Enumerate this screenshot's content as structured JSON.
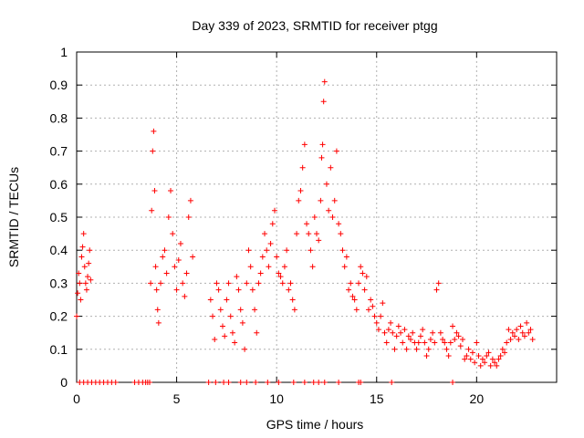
{
  "chart_data": {
    "type": "scatter",
    "title": "Day 339 of 2023, SRMTID for receiver ptgg",
    "xlabel": "GPS time / hours",
    "ylabel": "SRMTID / TECUs",
    "xlim": [
      0,
      24
    ],
    "ylim": [
      0,
      1
    ],
    "xticks": [
      0,
      5,
      10,
      15,
      20
    ],
    "xtick_labels": [
      "0",
      "5",
      "10",
      "15",
      "20"
    ],
    "yticks": [
      0,
      0.1,
      0.2,
      0.3,
      0.4,
      0.5,
      0.6,
      0.7,
      0.8,
      0.9,
      1
    ],
    "ytick_labels": [
      "0",
      "0.1",
      "0.2",
      "0.3",
      "0.4",
      "0.5",
      "0.6",
      "0.7",
      "0.8",
      "0.9",
      "1"
    ],
    "grid": true,
    "marker": "+",
    "series": [
      {
        "name": "SRMTID",
        "color": "#ff0000",
        "x": [
          0.0,
          0.05,
          0.1,
          0.15,
          0.2,
          0.25,
          0.3,
          0.35,
          0.4,
          0.45,
          0.5,
          0.55,
          0.6,
          0.65,
          0.7,
          3.7,
          3.75,
          3.8,
          3.85,
          3.9,
          3.95,
          4.0,
          4.05,
          4.1,
          4.2,
          4.3,
          4.4,
          4.5,
          4.6,
          4.7,
          4.8,
          4.9,
          5.0,
          5.1,
          5.2,
          5.3,
          5.4,
          5.5,
          5.6,
          5.7,
          5.8,
          6.7,
          6.8,
          6.9,
          7.0,
          7.1,
          7.2,
          7.3,
          7.4,
          7.5,
          7.6,
          7.7,
          7.8,
          7.9,
          8.0,
          8.1,
          8.2,
          8.3,
          8.4,
          8.5,
          8.6,
          8.7,
          8.8,
          8.9,
          9.0,
          9.1,
          9.2,
          9.3,
          9.4,
          9.5,
          9.6,
          9.7,
          9.8,
          9.9,
          10.0,
          10.1,
          10.2,
          10.3,
          10.4,
          10.5,
          10.6,
          10.7,
          10.8,
          10.9,
          11.0,
          11.1,
          11.2,
          11.3,
          11.4,
          11.5,
          11.6,
          11.7,
          11.8,
          11.9,
          12.0,
          12.1,
          12.2,
          12.25,
          12.3,
          12.35,
          12.4,
          12.5,
          12.6,
          12.7,
          12.8,
          12.9,
          13.0,
          13.1,
          13.2,
          13.3,
          13.4,
          13.5,
          13.6,
          13.7,
          13.8,
          13.9,
          14.0,
          14.1,
          14.2,
          14.3,
          14.4,
          14.5,
          14.6,
          14.7,
          14.8,
          14.9,
          15.0,
          15.1,
          15.2,
          15.3,
          15.4,
          15.5,
          15.6,
          15.7,
          15.8,
          15.9,
          16.0,
          16.1,
          16.2,
          16.3,
          16.4,
          16.5,
          16.6,
          16.7,
          16.8,
          16.9,
          17.0,
          17.1,
          17.2,
          17.3,
          17.4,
          17.5,
          17.6,
          17.7,
          17.8,
          17.9,
          18.0,
          18.1,
          18.2,
          18.3,
          18.4,
          18.5,
          18.6,
          18.7,
          18.8,
          18.9,
          19.0,
          19.1,
          19.2,
          19.3,
          19.4,
          19.5,
          19.6,
          19.7,
          19.8,
          19.9,
          20.0,
          20.1,
          20.2,
          20.3,
          20.4,
          20.5,
          20.6,
          20.7,
          20.8,
          20.9,
          21.0,
          21.1,
          21.2,
          21.3,
          21.4,
          21.5,
          21.6,
          21.7,
          21.8,
          21.9,
          22.0,
          22.1,
          22.2,
          22.3,
          22.4,
          22.5,
          22.6,
          22.7,
          22.8,
          0.15,
          0.35,
          0.55,
          0.75,
          0.95,
          1.15,
          1.35,
          1.55,
          1.75,
          1.95,
          2.9,
          3.1,
          3.3,
          3.45,
          3.55,
          3.65,
          6.6,
          6.95,
          7.35,
          7.6,
          8.2,
          8.5,
          8.95,
          9.55,
          10.1,
          10.85,
          11.4,
          11.85,
          12.1,
          12.4,
          13.1,
          14.1,
          14.2,
          15.75,
          18.8
        ],
        "y": [
          0.2,
          0.27,
          0.33,
          0.3,
          0.25,
          0.38,
          0.41,
          0.45,
          0.35,
          0.3,
          0.28,
          0.32,
          0.36,
          0.4,
          0.31,
          0.3,
          0.52,
          0.7,
          0.76,
          0.58,
          0.35,
          0.28,
          0.22,
          0.18,
          0.3,
          0.38,
          0.4,
          0.33,
          0.5,
          0.58,
          0.45,
          0.35,
          0.28,
          0.37,
          0.42,
          0.3,
          0.26,
          0.33,
          0.5,
          0.55,
          0.38,
          0.25,
          0.2,
          0.13,
          0.3,
          0.28,
          0.22,
          0.17,
          0.14,
          0.25,
          0.3,
          0.2,
          0.15,
          0.12,
          0.32,
          0.28,
          0.22,
          0.18,
          0.1,
          0.3,
          0.4,
          0.35,
          0.28,
          0.22,
          0.15,
          0.3,
          0.33,
          0.38,
          0.45,
          0.4,
          0.35,
          0.42,
          0.48,
          0.52,
          0.38,
          0.33,
          0.32,
          0.3,
          0.35,
          0.4,
          0.28,
          0.3,
          0.25,
          0.22,
          0.45,
          0.55,
          0.58,
          0.65,
          0.72,
          0.48,
          0.45,
          0.4,
          0.35,
          0.5,
          0.45,
          0.43,
          0.55,
          0.68,
          0.72,
          0.85,
          0.91,
          0.6,
          0.52,
          0.65,
          0.5,
          0.55,
          0.7,
          0.48,
          0.45,
          0.4,
          0.35,
          0.38,
          0.28,
          0.3,
          0.26,
          0.25,
          0.22,
          0.3,
          0.35,
          0.33,
          0.28,
          0.32,
          0.22,
          0.25,
          0.23,
          0.2,
          0.18,
          0.16,
          0.2,
          0.24,
          0.15,
          0.12,
          0.16,
          0.18,
          0.15,
          0.1,
          0.14,
          0.17,
          0.15,
          0.12,
          0.16,
          0.1,
          0.14,
          0.13,
          0.15,
          0.12,
          0.1,
          0.12,
          0.14,
          0.16,
          0.12,
          0.08,
          0.1,
          0.13,
          0.15,
          0.12,
          0.28,
          0.3,
          0.15,
          0.13,
          0.12,
          0.1,
          0.08,
          0.12,
          0.17,
          0.13,
          0.15,
          0.14,
          0.11,
          0.13,
          0.07,
          0.08,
          0.1,
          0.07,
          0.09,
          0.06,
          0.12,
          0.08,
          0.05,
          0.07,
          0.06,
          0.08,
          0.09,
          0.05,
          0.07,
          0.06,
          0.05,
          0.07,
          0.08,
          0.1,
          0.09,
          0.12,
          0.16,
          0.13,
          0.15,
          0.14,
          0.16,
          0.13,
          0.17,
          0.15,
          0.14,
          0.18,
          0.15,
          0.16,
          0.13,
          0,
          0,
          0,
          0,
          0,
          0,
          0,
          0,
          0,
          0,
          0,
          0,
          0,
          0,
          0,
          0,
          0,
          0,
          0,
          0,
          0,
          0,
          0,
          0,
          0,
          0,
          0,
          0,
          0,
          0,
          0,
          0,
          0,
          0,
          0
        ]
      }
    ]
  }
}
